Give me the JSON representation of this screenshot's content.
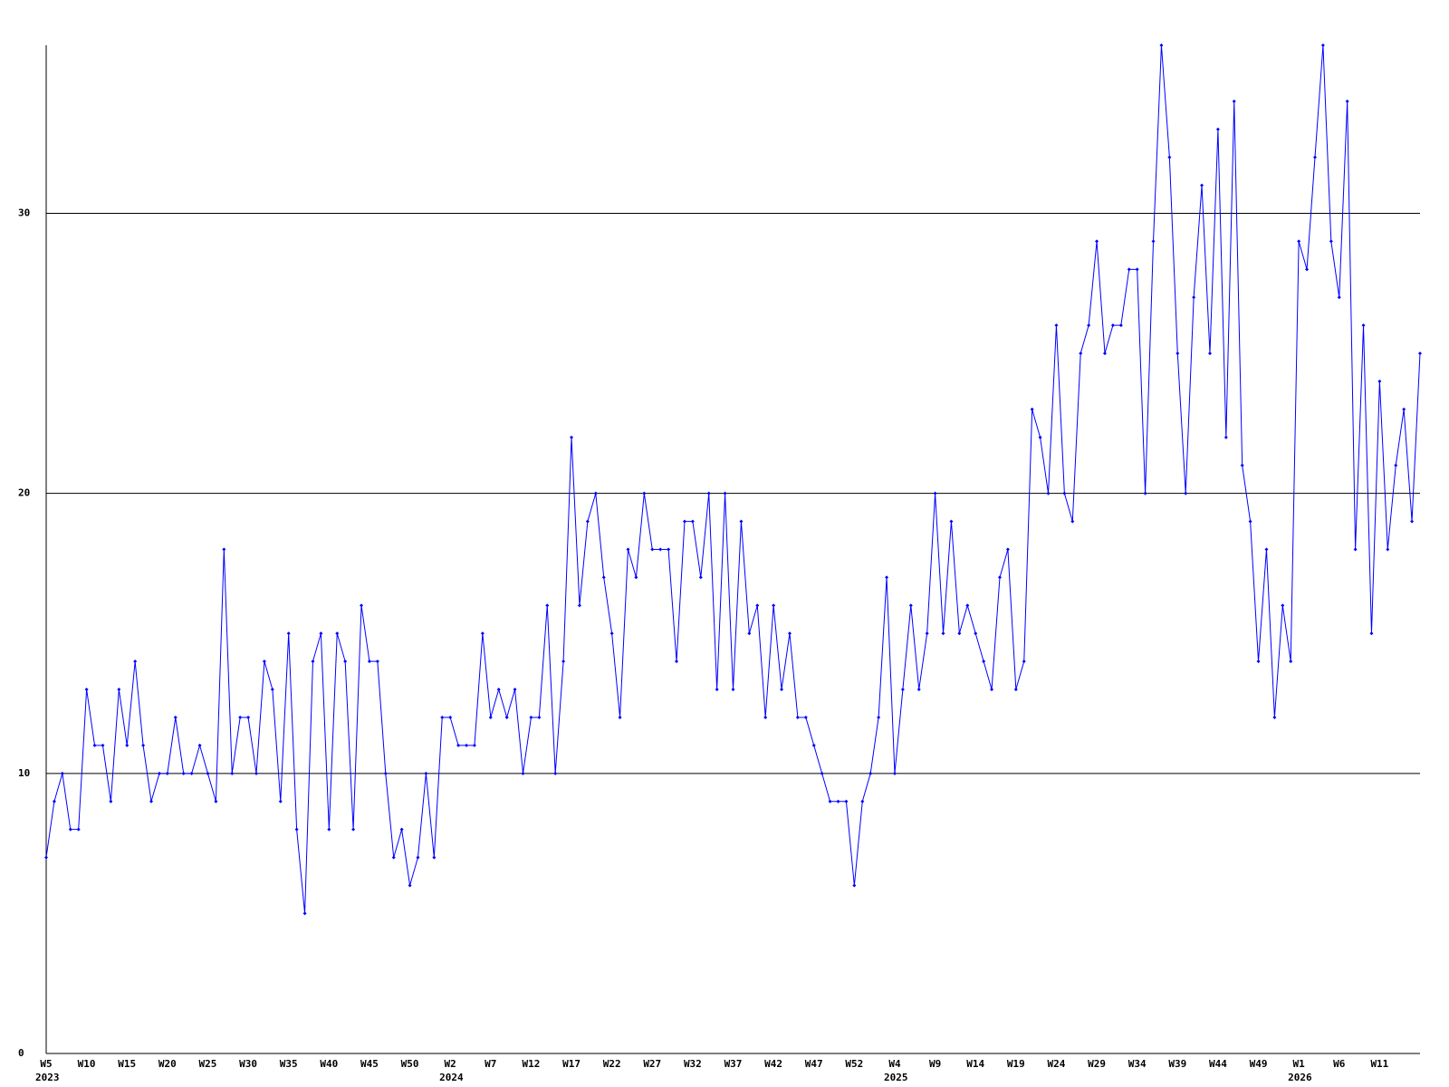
{
  "chart_data": {
    "type": "line",
    "categories": [
      "W5",
      null,
      null,
      null,
      null,
      "W10",
      null,
      null,
      null,
      null,
      "W15",
      null,
      null,
      null,
      null,
      "W20",
      null,
      null,
      null,
      null,
      "W25",
      null,
      null,
      null,
      null,
      "W30",
      null,
      null,
      null,
      null,
      "W35",
      null,
      null,
      null,
      null,
      "W40",
      null,
      null,
      null,
      null,
      "W45",
      null,
      null,
      null,
      null,
      "W50",
      null,
      null,
      null,
      null,
      "W2",
      null,
      null,
      null,
      null,
      "W7",
      null,
      null,
      null,
      null,
      "W12",
      null,
      null,
      null,
      null,
      "W17",
      null,
      null,
      null,
      null,
      "W22",
      null,
      null,
      null,
      null,
      "W27",
      null,
      null,
      null,
      null,
      "W32",
      null,
      null,
      null,
      null,
      "W37",
      null,
      null,
      null,
      null,
      "W42",
      null,
      null,
      null,
      null,
      "W47",
      null,
      null,
      null,
      null,
      "W52",
      null,
      null,
      null,
      null,
      "W4",
      null,
      null,
      null,
      null,
      "W9",
      null,
      null,
      null,
      null,
      "W14",
      null,
      null,
      null,
      null,
      "W19",
      null,
      null,
      null,
      null,
      "W24",
      null,
      null,
      null,
      null,
      "W29",
      null,
      null,
      null,
      null,
      "W34",
      null,
      null,
      null,
      null,
      "W39",
      null,
      null,
      null,
      null,
      "W44",
      null,
      null,
      null,
      null,
      "W49",
      null,
      null,
      null,
      null,
      "W1",
      null,
      null,
      null,
      null,
      "W6",
      null,
      null,
      null,
      null,
      "W11",
      null,
      null,
      null,
      null,
      null
    ],
    "category_years": [
      "2023",
      null,
      null,
      null,
      null,
      null,
      null,
      null,
      null,
      null,
      null,
      null,
      null,
      null,
      null,
      null,
      null,
      null,
      null,
      null,
      null,
      null,
      null,
      null,
      null,
      null,
      null,
      null,
      null,
      null,
      null,
      null,
      null,
      null,
      null,
      null,
      null,
      null,
      null,
      null,
      null,
      null,
      null,
      null,
      null,
      null,
      null,
      null,
      null,
      null,
      "2024",
      null,
      null,
      null,
      null,
      null,
      null,
      null,
      null,
      null,
      null,
      null,
      null,
      null,
      null,
      null,
      null,
      null,
      null,
      null,
      null,
      null,
      null,
      null,
      null,
      null,
      null,
      null,
      null,
      null,
      null,
      null,
      null,
      null,
      null,
      null,
      null,
      null,
      null,
      null,
      null,
      null,
      null,
      null,
      null,
      null,
      null,
      null,
      null,
      null,
      null,
      null,
      null,
      null,
      null,
      "2025",
      null,
      null,
      null,
      null,
      null,
      null,
      null,
      null,
      null,
      null,
      null,
      null,
      null,
      null,
      null,
      null,
      null,
      null,
      null,
      null,
      null,
      null,
      null,
      null,
      null,
      null,
      null,
      null,
      null,
      null,
      null,
      null,
      null,
      null,
      null,
      null,
      null,
      null,
      null,
      null,
      null,
      null,
      null,
      null,
      null,
      null,
      null,
      null,
      null,
      "2026",
      null,
      null,
      null,
      null,
      null,
      null,
      null,
      null,
      null,
      null,
      null,
      null,
      null,
      null,
      null
    ],
    "values": [
      7,
      9,
      10,
      8,
      8,
      13,
      11,
      11,
      9,
      13,
      11,
      14,
      11,
      9,
      10,
      10,
      12,
      10,
      10,
      11,
      10,
      9,
      18,
      10,
      12,
      12,
      10,
      14,
      13,
      9,
      15,
      8,
      5,
      14,
      15,
      8,
      15,
      14,
      8,
      16,
      14,
      14,
      10,
      7,
      8,
      6,
      7,
      10,
      7,
      12,
      12,
      11,
      11,
      11,
      15,
      12,
      13,
      12,
      13,
      10,
      12,
      12,
      16,
      10,
      14,
      22,
      16,
      19,
      20,
      17,
      15,
      12,
      18,
      17,
      20,
      18,
      18,
      18,
      14,
      19,
      19,
      17,
      20,
      13,
      20,
      13,
      19,
      15,
      16,
      12,
      16,
      13,
      15,
      12,
      12,
      11,
      10,
      9,
      9,
      9,
      6,
      9,
      10,
      12,
      17,
      10,
      13,
      16,
      13,
      15,
      20,
      15,
      19,
      15,
      16,
      15,
      14,
      13,
      17,
      18,
      13,
      14,
      23,
      22,
      20,
      26,
      20,
      19,
      25,
      26,
      29,
      25,
      26,
      26,
      28,
      28,
      20,
      29,
      36,
      32,
      25,
      20,
      27,
      31,
      25,
      33,
      22,
      34,
      21,
      19,
      14,
      18,
      12,
      16,
      14,
      29,
      28,
      32,
      36,
      29,
      27,
      34,
      18,
      26,
      15,
      24,
      18,
      21,
      23,
      19,
      25
    ],
    "color": "#0000ff",
    "ylim": [
      0,
      36
    ],
    "yticks": [
      0,
      10,
      20,
      30
    ],
    "grid": true
  }
}
